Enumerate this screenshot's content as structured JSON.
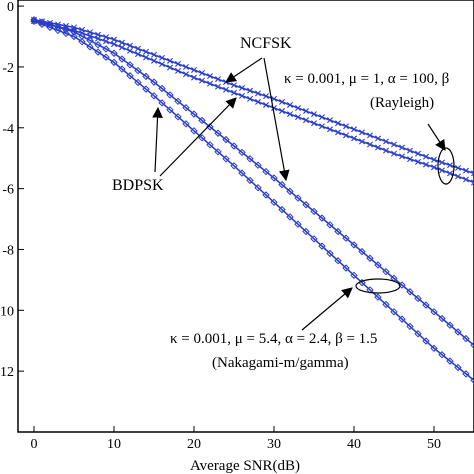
{
  "chart_data": {
    "type": "line",
    "xlabel": "Average SNR(dB)",
    "ylabel": "",
    "xlim": [
      -2,
      55
    ],
    "ylim": [
      -14,
      0.2
    ],
    "x_ticks": [
      0,
      10,
      20,
      30,
      40,
      50
    ],
    "y_ticks": [
      {
        "value": 0,
        "label": "0"
      },
      {
        "value": -2,
        "label": "-2"
      },
      {
        "value": -4,
        "label": "-4"
      },
      {
        "value": -6,
        "label": "-6"
      },
      {
        "value": -8,
        "label": "-8"
      },
      {
        "value": -10,
        "label": "-10"
      },
      {
        "value": -12,
        "label": "-12"
      }
    ],
    "x": [
      0,
      5,
      10,
      15,
      20,
      25,
      30,
      35,
      40,
      45,
      50,
      55
    ],
    "series": [
      {
        "marker": "x",
        "color": "#2a3ec8",
        "values": [
          -0.45,
          -0.7,
          -1.1,
          -1.6,
          -2.1,
          -2.6,
          -3.05,
          -3.55,
          -4.05,
          -4.55,
          -5.05,
          -5.5
        ]
      },
      {
        "marker": "x",
        "color": "#2a3ec8",
        "values": [
          -0.5,
          -0.8,
          -1.25,
          -1.8,
          -2.35,
          -2.85,
          -3.35,
          -3.85,
          -4.35,
          -4.85,
          -5.3,
          -5.8
        ]
      },
      {
        "marker": "diamond",
        "color": "#2a3ec8",
        "values": [
          -0.45,
          -0.85,
          -1.55,
          -2.5,
          -3.55,
          -4.6,
          -5.65,
          -6.75,
          -7.85,
          -8.95,
          -10.05,
          -11.15
        ]
      },
      {
        "marker": "diamond",
        "color": "#2a3ec8",
        "values": [
          -0.5,
          -1.0,
          -1.85,
          -2.95,
          -4.1,
          -5.25,
          -6.45,
          -7.65,
          -8.85,
          -10.05,
          -11.25,
          -12.3
        ]
      }
    ],
    "annotations": {
      "ncfsk": "NCFSK",
      "bdpsk": "BDPSK",
      "rayleigh_params": "κ = 0.001, μ = 1, α = 100, β",
      "rayleigh": "(Rayleigh)",
      "nakagami_params": "κ = 0.001, μ = 5.4, α =  2.4, β = 1.5",
      "nakagami": "(Nakagami-m/gamma)"
    },
    "grid": false
  }
}
